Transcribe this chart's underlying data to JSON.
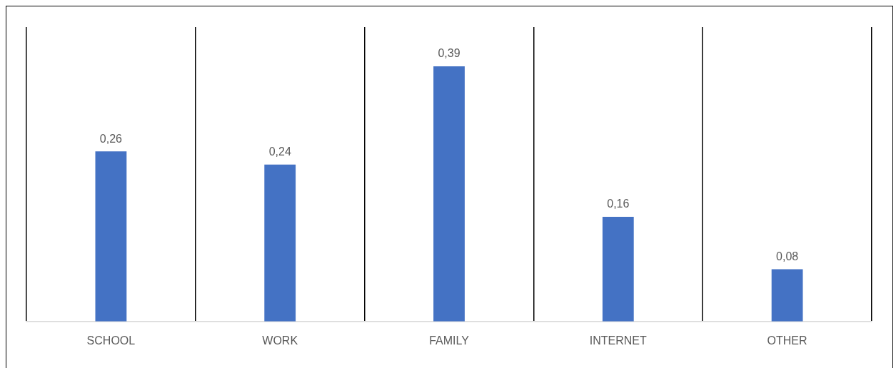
{
  "chart_data": {
    "type": "bar",
    "categories": [
      "SCHOOL",
      "WORK",
      "FAMILY",
      "INTERNET",
      "OTHER"
    ],
    "values": [
      0.26,
      0.24,
      0.39,
      0.16,
      0.08
    ],
    "value_labels": [
      "0,26",
      "0,24",
      "0,39",
      "0,16",
      "0,08"
    ],
    "color": "#4472c4",
    "grid": "x",
    "legend": false,
    "tick_labels": "x"
  }
}
